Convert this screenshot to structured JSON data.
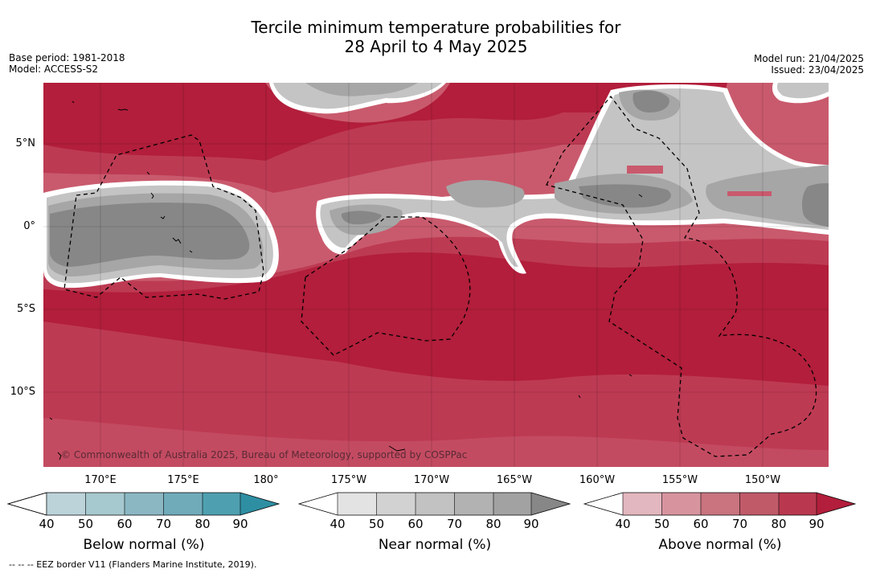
{
  "title": {
    "line1": "Tercile minimum temperature probabilities for",
    "line2": "28 April to 4 May 2025"
  },
  "meta_left": {
    "base_period": "Base period: 1981-2018",
    "model": "Model: ACCESS-S2"
  },
  "meta_right": {
    "model_run": "Model run: 21/04/2025",
    "issued": "Issued: 23/04/2025"
  },
  "map": {
    "lat_labels": [
      "5°N",
      "0°",
      "5°S",
      "10°S"
    ],
    "lon_labels": [
      "170°E",
      "175°E",
      "180°",
      "175°W",
      "170°W",
      "165°W",
      "160°W",
      "155°W",
      "150°W"
    ],
    "copyright": "© Commonwealth of Australia 2025, Bureau of Meteorology, supported by COSPPac",
    "colors": {
      "above_90": "#b21e3b",
      "above_80": "#bd3a53",
      "above_70": "#c95a6d",
      "near_70": "#c4c4c4",
      "near_80": "#a6a6a6",
      "near_90": "#878787",
      "land_outline": "#000000"
    }
  },
  "colorbars": [
    {
      "name": "below-normal",
      "title": "Below normal (%)",
      "ticks": [
        "40",
        "50",
        "60",
        "70",
        "80",
        "90"
      ],
      "colors": [
        "#bcd3da",
        "#a6c8cf",
        "#8bb7c3",
        "#70abba",
        "#4ea0b0",
        "#2e8fa3"
      ]
    },
    {
      "name": "near-normal",
      "title": "Near normal (%)",
      "ticks": [
        "40",
        "50",
        "60",
        "70",
        "80",
        "90"
      ],
      "colors": [
        "#e3e3e3",
        "#d2d2d2",
        "#c2c2c2",
        "#b2b2b2",
        "#a2a2a2",
        "#878787"
      ]
    },
    {
      "name": "above-normal",
      "title": "Above normal (%)",
      "ticks": [
        "40",
        "50",
        "60",
        "70",
        "80",
        "90"
      ],
      "colors": [
        "#e3b7bf",
        "#d7949f",
        "#c9747f",
        "#c05a69",
        "#b9384f",
        "#b21e3b"
      ]
    }
  ],
  "footnote": "--  --  -- EEZ border V11 (Flanders Marine Institute, 2019)."
}
